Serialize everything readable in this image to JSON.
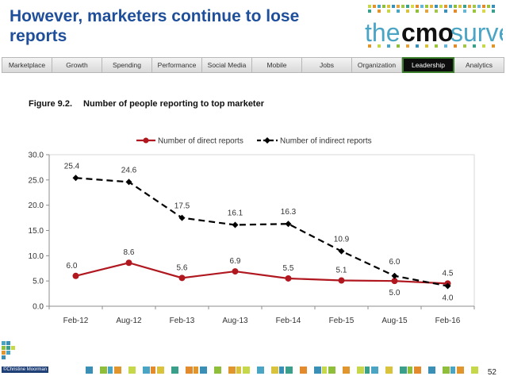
{
  "slide": {
    "title": "However, marketers continue to lose reports",
    "page_number": "52",
    "copyright": "©Christine Moorman"
  },
  "logo": {
    "text_the": "the",
    "text_cmo": "cmo",
    "text_survey": "survey"
  },
  "nav": {
    "items": [
      "Marketplace",
      "Growth",
      "Spending",
      "Performance",
      "Social Media",
      "Mobile",
      "Jobs",
      "Organization",
      "Leadership",
      "Analytics"
    ],
    "active": "Leadership"
  },
  "figure": {
    "number": "Figure 9.2.",
    "caption": "Number of  people reporting to top marketer"
  },
  "chart_data": {
    "type": "line",
    "title": "",
    "categories": [
      "Feb-12",
      "Aug-12",
      "Feb-13",
      "Aug-13",
      "Feb-14",
      "Feb-15",
      "Aug-15",
      "Feb-16"
    ],
    "series": [
      {
        "name": "Number of direct reports",
        "values": [
          6.0,
          8.6,
          5.6,
          6.9,
          5.5,
          5.1,
          5.0,
          4.5
        ],
        "labels": [
          "6.0",
          "8.6",
          "5.6",
          "6.9",
          "5.5",
          "5.1",
          "5.0",
          "4.5"
        ],
        "color": "#b0171f",
        "style": "solid"
      },
      {
        "name": "Number of indirect reports",
        "values": [
          25.4,
          24.6,
          17.5,
          16.1,
          16.3,
          10.9,
          6.0,
          4.0
        ],
        "labels": [
          "25.4",
          "24.6",
          "17.5",
          "16.1",
          "16.3",
          "10.9",
          "6.0",
          "4.0"
        ],
        "color": "#000000",
        "style": "dashed"
      }
    ],
    "ylim": [
      0,
      30
    ],
    "yticks": [
      "0.0",
      "5.0",
      "10.0",
      "15.0",
      "20.0",
      "25.0",
      "30.0"
    ],
    "legend": "top-center",
    "grid": false
  }
}
